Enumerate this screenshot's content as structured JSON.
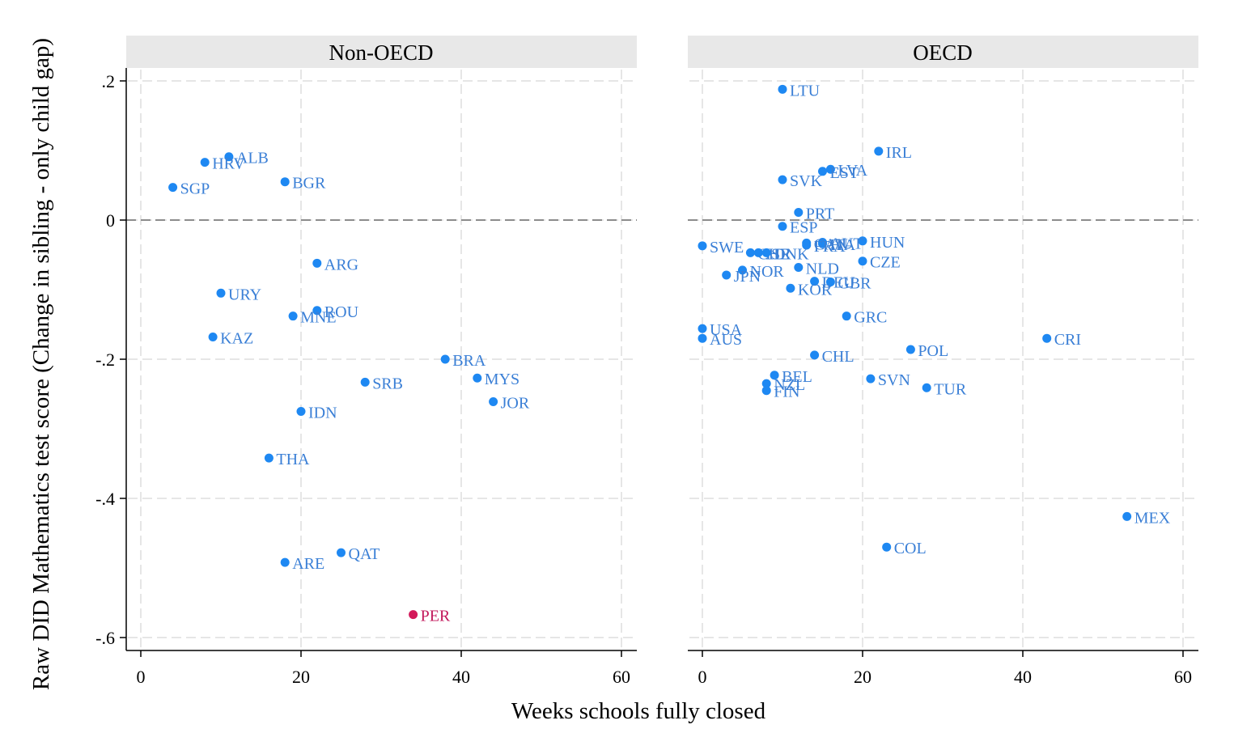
{
  "chart_data": {
    "type": "scatter",
    "xlabel": "Weeks schools fully closed",
    "ylabel": "Raw DID Mathematics test score (Change in sibling - only child gap)",
    "xlim": [
      -2,
      62
    ],
    "ylim": [
      -0.615,
      0.21
    ],
    "xticks": [
      0,
      20,
      40,
      60
    ],
    "yticks": [
      0.2,
      0,
      -0.2,
      -0.4,
      -0.6
    ],
    "ytick_labels": [
      ".2",
      "0",
      "-.2",
      "-.4",
      "-.6"
    ],
    "reference_line_y": 0,
    "grid": true,
    "colors": {
      "point": "#1e88f2",
      "highlight": "#d3195a",
      "label": "#3a7fd6",
      "highlight_label": "#c2185b",
      "strip": "#e8e8e8",
      "zero_line": "#8c8c8c"
    },
    "panels": [
      {
        "title": "Non-OECD",
        "points": [
          {
            "label": "ALB",
            "x": 11,
            "y": 0.091
          },
          {
            "label": "HRV",
            "x": 8,
            "y": 0.083
          },
          {
            "label": "BGR",
            "x": 18,
            "y": 0.055
          },
          {
            "label": "SGP",
            "x": 4,
            "y": 0.047
          },
          {
            "label": "ARG",
            "x": 22,
            "y": -0.062
          },
          {
            "label": "URY",
            "x": 10,
            "y": -0.105
          },
          {
            "label": "ROU",
            "x": 22,
            "y": -0.13
          },
          {
            "label": "MNE",
            "x": 19,
            "y": -0.138
          },
          {
            "label": "KAZ",
            "x": 9,
            "y": -0.168
          },
          {
            "label": "BRA",
            "x": 38,
            "y": -0.2
          },
          {
            "label": "MYS",
            "x": 42,
            "y": -0.227
          },
          {
            "label": "SRB",
            "x": 28,
            "y": -0.233
          },
          {
            "label": "JOR",
            "x": 44,
            "y": -0.261
          },
          {
            "label": "IDN",
            "x": 20,
            "y": -0.275
          },
          {
            "label": "THA",
            "x": 16,
            "y": -0.342
          },
          {
            "label": "QAT",
            "x": 25,
            "y": -0.478
          },
          {
            "label": "ARE",
            "x": 18,
            "y": -0.492
          },
          {
            "label": "PER",
            "x": 34,
            "y": -0.567,
            "highlight": true
          }
        ]
      },
      {
        "title": "OECD",
        "points": [
          {
            "label": "LTU",
            "x": 10,
            "y": 0.188
          },
          {
            "label": "IRL",
            "x": 22,
            "y": 0.099
          },
          {
            "label": "LVA",
            "x": 16,
            "y": 0.073
          },
          {
            "label": "EST",
            "x": 15,
            "y": 0.07
          },
          {
            "label": "SVK",
            "x": 10,
            "y": 0.058
          },
          {
            "label": "PRT",
            "x": 12,
            "y": 0.011
          },
          {
            "label": "ESP",
            "x": 10,
            "y": -0.009
          },
          {
            "label": "HUN",
            "x": 20,
            "y": -0.03
          },
          {
            "label": "AUT",
            "x": 15,
            "y": -0.032
          },
          {
            "label": "ITA",
            "x": 15,
            "y": -0.034
          },
          {
            "label": "CAN",
            "x": 13,
            "y": -0.033
          },
          {
            "label": "FRA",
            "x": 13,
            "y": -0.036
          },
          {
            "label": "SWE",
            "x": 0,
            "y": -0.037
          },
          {
            "label": "CHE",
            "x": 6,
            "y": -0.047
          },
          {
            "label": "ISR",
            "x": 7,
            "y": -0.047
          },
          {
            "label": "DNK",
            "x": 8,
            "y": -0.047
          },
          {
            "label": "CZE",
            "x": 20,
            "y": -0.059
          },
          {
            "label": "NLD",
            "x": 12,
            "y": -0.068
          },
          {
            "label": "NOR",
            "x": 5,
            "y": -0.072
          },
          {
            "label": "JPN",
            "x": 3,
            "y": -0.079
          },
          {
            "label": "DEU",
            "x": 14,
            "y": -0.088
          },
          {
            "label": "GBR",
            "x": 16,
            "y": -0.089
          },
          {
            "label": "KOR",
            "x": 11,
            "y": -0.098
          },
          {
            "label": "GRC",
            "x": 18,
            "y": -0.138
          },
          {
            "label": "USA",
            "x": 0,
            "y": -0.156
          },
          {
            "label": "AUS",
            "x": 0,
            "y": -0.17
          },
          {
            "label": "CRI",
            "x": 43,
            "y": -0.17
          },
          {
            "label": "POL",
            "x": 26,
            "y": -0.186
          },
          {
            "label": "CHL",
            "x": 14,
            "y": -0.194
          },
          {
            "label": "BEL",
            "x": 9,
            "y": -0.223
          },
          {
            "label": "SVN",
            "x": 21,
            "y": -0.228
          },
          {
            "label": "NZL",
            "x": 8,
            "y": -0.235
          },
          {
            "label": "TUR",
            "x": 28,
            "y": -0.241
          },
          {
            "label": "FIN",
            "x": 8,
            "y": -0.245
          },
          {
            "label": "MEX",
            "x": 53,
            "y": -0.426
          },
          {
            "label": "COL",
            "x": 23,
            "y": -0.47
          }
        ]
      }
    ]
  }
}
